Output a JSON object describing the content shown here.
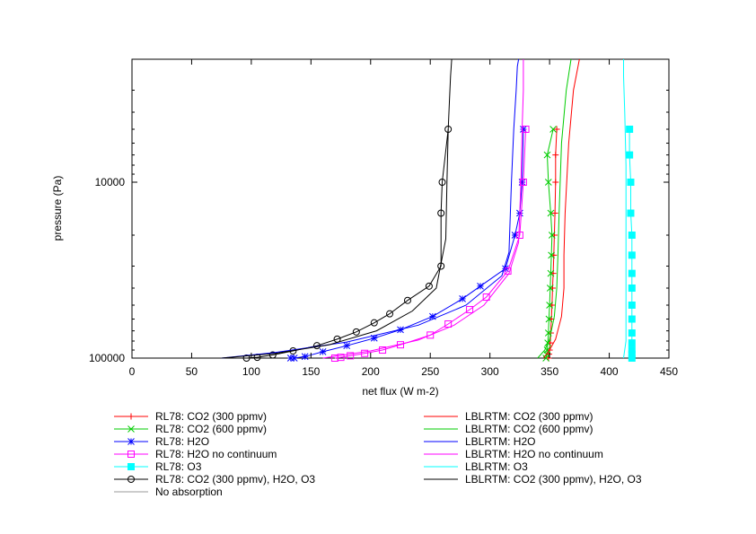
{
  "chart_data": {
    "type": "line",
    "title": "",
    "xlabel": "net flux (W m-2)",
    "ylabel": "pressure (Pa)",
    "xlim": [
      0,
      450
    ],
    "ylim": [
      100000,
      2000
    ],
    "yscale": "log",
    "y_inverted": true,
    "x_ticks": [
      0,
      50,
      100,
      150,
      200,
      250,
      300,
      350,
      400,
      450
    ],
    "y_tick_labels": [
      "10000",
      "100000"
    ],
    "grid": false,
    "legend_placement": "below plot, two columns",
    "series": [
      {
        "name": "RL78: CO2 (300 ppmv)",
        "color": "#ff0000",
        "marker": "plus",
        "x": [
          349,
          349.5,
          350,
          350.5,
          351,
          351.5,
          352,
          352.5,
          353,
          353.5,
          354,
          354.5,
          355,
          355,
          356
        ],
        "y": [
          100000,
          95000,
          90000,
          82000,
          72000,
          60000,
          50000,
          40000,
          33000,
          26000,
          20000,
          15000,
          10000,
          7000,
          5000
        ]
      },
      {
        "name": "RL78: CO2 (600 ppmv)",
        "color": "#00cc00",
        "marker": "cross",
        "x": [
          347,
          347.5,
          348,
          348.5,
          349,
          349.5,
          350,
          350.5,
          351,
          351.5,
          352,
          351,
          349,
          348,
          353
        ],
        "y": [
          100000,
          95000,
          90000,
          82000,
          72000,
          60000,
          50000,
          40000,
          33000,
          26000,
          20000,
          15000,
          10000,
          7000,
          5000
        ]
      },
      {
        "name": "RL78: H2O",
        "color": "#0000ff",
        "marker": "star",
        "x": [
          133,
          136,
          145,
          160,
          180,
          203,
          225,
          252,
          277,
          292,
          313,
          321,
          325,
          327,
          328
        ],
        "y": [
          100000,
          100000,
          98000,
          92000,
          85000,
          77000,
          69000,
          58000,
          46000,
          39000,
          31000,
          20000,
          15000,
          10000,
          5000
        ]
      },
      {
        "name": "RL78: H2O no continuum",
        "color": "#ff00ff",
        "marker": "square",
        "x": [
          170,
          175,
          183,
          195,
          210,
          225,
          250,
          265,
          283,
          297,
          315,
          325,
          328,
          330
        ],
        "y": [
          100000,
          99000,
          97000,
          94000,
          90000,
          84000,
          74000,
          64000,
          53000,
          45000,
          32000,
          20000,
          10000,
          5000
        ]
      },
      {
        "name": "RL78: O3",
        "color": "#00ffff",
        "marker": "filled-square",
        "x": [
          419,
          419,
          419,
          419,
          419,
          419,
          419,
          419,
          419,
          419,
          419,
          418,
          418,
          417,
          417
        ],
        "y": [
          100000,
          95000,
          90000,
          82000,
          72000,
          60000,
          50000,
          40000,
          33000,
          26000,
          20000,
          15000,
          10000,
          7000,
          5000
        ]
      },
      {
        "name": "RL78: CO2 (300 ppmv), H2O, O3",
        "color": "#000000",
        "marker": "circle",
        "x": [
          96,
          105,
          118,
          135,
          155,
          172,
          188,
          203,
          216,
          231,
          249,
          259,
          259,
          260,
          265
        ],
        "y": [
          100000,
          99000,
          96000,
          91000,
          85000,
          78000,
          71000,
          63000,
          56000,
          47000,
          39000,
          30000,
          15000,
          10000,
          5000
        ]
      },
      {
        "name": "LBLRTM: CO2 (300 ppmv)",
        "color": "#ff0000",
        "marker": "none",
        "x": [
          345,
          350,
          355,
          360,
          362,
          362,
          363,
          366,
          370,
          375
        ],
        "y": [
          100000,
          90000,
          78000,
          58000,
          40000,
          26000,
          15000,
          6000,
          3000,
          1800
        ]
      },
      {
        "name": "LBLRTM: CO2 (600 ppmv)",
        "color": "#00cc00",
        "marker": "none",
        "x": [
          340,
          346,
          350,
          354,
          356,
          357,
          358,
          360,
          364,
          368
        ],
        "y": [
          100000,
          90000,
          78000,
          58000,
          40000,
          26000,
          15000,
          6000,
          3000,
          1800
        ]
      },
      {
        "name": "LBLRTM: H2O",
        "color": "#0000ff",
        "marker": "none",
        "x": [
          75,
          120,
          180,
          240,
          280,
          310,
          316,
          318,
          320,
          322,
          323,
          324
        ],
        "y": [
          100000,
          93000,
          81000,
          65000,
          50000,
          34000,
          25000,
          10000,
          5000,
          3000,
          2200,
          1800
        ]
      },
      {
        "name": "LBLRTM: H2O no continuum",
        "color": "#ff00ff",
        "marker": "none",
        "x": [
          160,
          200,
          240,
          270,
          295,
          316,
          324,
          326,
          327,
          328,
          328,
          328
        ],
        "y": [
          100000,
          91000,
          79000,
          65000,
          50000,
          33000,
          22000,
          10000,
          5000,
          3000,
          2200,
          1800
        ]
      },
      {
        "name": "LBLRTM: O3",
        "color": "#00ffff",
        "marker": "none",
        "x": [
          412,
          414,
          414,
          414,
          414,
          414,
          413,
          412,
          412
        ],
        "y": [
          100000,
          80000,
          50000,
          30000,
          15000,
          8000,
          4000,
          2500,
          1800
        ]
      },
      {
        "name": "LBLRTM: CO2 (300 ppmv), H2O, O3",
        "color": "#000000",
        "marker": "none",
        "x": [
          75,
          120,
          165,
          205,
          235,
          255,
          263,
          264,
          265,
          266,
          267,
          268,
          270
        ],
        "y": [
          100000,
          94000,
          84000,
          70000,
          54000,
          40000,
          21000,
          10000,
          5000,
          3500,
          2500,
          2000,
          1800
        ]
      },
      {
        "name": "No absorption",
        "color": "#999999",
        "marker": "none",
        "x": [],
        "y": []
      }
    ]
  }
}
